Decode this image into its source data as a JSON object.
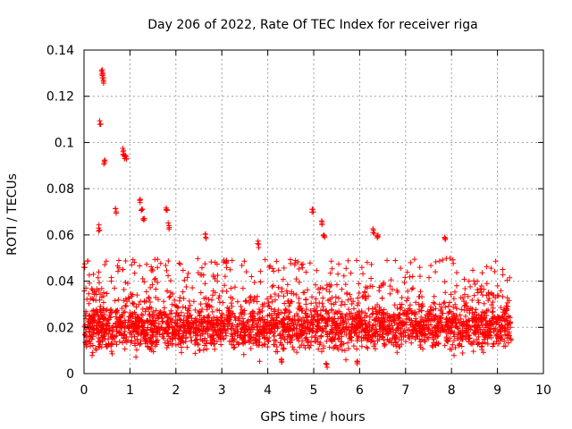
{
  "chart_data": {
    "type": "scatter",
    "title": "Day 206 of 2022, Rate Of TEC Index for receiver riga",
    "xlabel": "GPS time / hours",
    "ylabel": "ROTI / TECUs",
    "xlim": [
      0,
      10
    ],
    "ylim": [
      0,
      0.14
    ],
    "x_ticks": [
      0,
      1,
      2,
      3,
      4,
      5,
      6,
      7,
      8,
      9,
      10
    ],
    "x_tick_labels": [
      "0",
      "1",
      "2",
      "3",
      "4",
      "5",
      "6",
      "7",
      "8",
      "9",
      "10"
    ],
    "y_ticks": [
      0,
      0.02,
      0.04,
      0.06,
      0.08,
      0.1,
      0.12,
      0.14
    ],
    "y_tick_labels": [
      "0",
      "0.02",
      "0.04",
      "0.06",
      "0.08",
      "0.1",
      "0.12",
      "0.14"
    ],
    "grid": true,
    "marker": "+",
    "color": "#ff0000",
    "series": [
      {
        "name": "ROTI",
        "x_range": [
          0,
          9.3
        ],
        "typical_band": [
          0.01,
          0.03
        ],
        "notable_points": [
          {
            "x": 0.38,
            "y": 0.131
          },
          {
            "x": 0.4,
            "y": 0.129
          },
          {
            "x": 0.42,
            "y": 0.127
          },
          {
            "x": 0.36,
            "y": 0.108
          },
          {
            "x": 0.44,
            "y": 0.092
          },
          {
            "x": 0.85,
            "y": 0.096
          },
          {
            "x": 0.88,
            "y": 0.094
          },
          {
            "x": 0.92,
            "y": 0.093
          },
          {
            "x": 1.22,
            "y": 0.074
          },
          {
            "x": 1.26,
            "y": 0.071
          },
          {
            "x": 1.3,
            "y": 0.067
          },
          {
            "x": 0.7,
            "y": 0.07
          },
          {
            "x": 1.8,
            "y": 0.071
          },
          {
            "x": 1.85,
            "y": 0.064
          },
          {
            "x": 0.32,
            "y": 0.063
          },
          {
            "x": 2.65,
            "y": 0.059
          },
          {
            "x": 4.98,
            "y": 0.071
          },
          {
            "x": 5.18,
            "y": 0.065
          },
          {
            "x": 5.22,
            "y": 0.06
          },
          {
            "x": 6.3,
            "y": 0.062
          },
          {
            "x": 6.4,
            "y": 0.06
          },
          {
            "x": 7.85,
            "y": 0.059
          },
          {
            "x": 3.8,
            "y": 0.056
          },
          {
            "x": 3.1,
            "y": 0.049
          },
          {
            "x": 4.3,
            "y": 0.005
          },
          {
            "x": 5.28,
            "y": 0.004
          },
          {
            "x": 5.95,
            "y": 0.005
          },
          {
            "x": 0.0,
            "y": 0.046
          },
          {
            "x": 9.2,
            "y": 0.028
          }
        ]
      }
    ]
  }
}
